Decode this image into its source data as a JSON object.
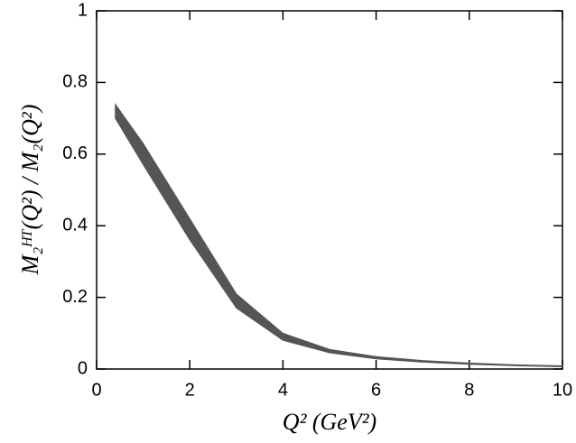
{
  "chart_data": {
    "type": "band",
    "ylabel": "M₂ᴴᵀ(Q²) / M₂(Q²)",
    "xlabel": "Q² (GeV²)",
    "x": [
      0.4,
      1,
      2,
      3,
      4,
      5,
      6,
      7,
      8,
      9,
      10
    ],
    "upper": [
      0.74,
      0.63,
      0.42,
      0.21,
      0.1,
      0.055,
      0.035,
      0.024,
      0.017,
      0.012,
      0.009
    ],
    "lower": [
      0.7,
      0.57,
      0.36,
      0.17,
      0.08,
      0.045,
      0.028,
      0.019,
      0.013,
      0.009,
      0.006
    ],
    "color": "#555555",
    "xlim": [
      0,
      10
    ],
    "xticks": [
      0,
      2,
      4,
      6,
      8,
      10
    ],
    "ylim": [
      0,
      1
    ],
    "yticks": [
      0,
      0.2,
      0.4,
      0.6,
      0.8,
      1
    ]
  }
}
